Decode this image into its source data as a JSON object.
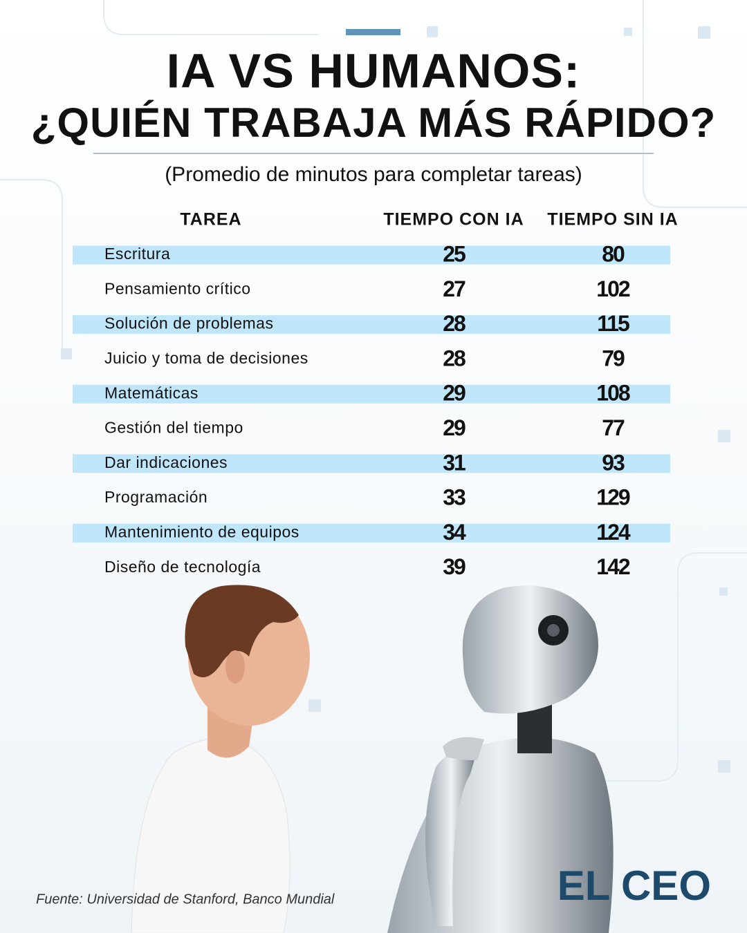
{
  "header": {
    "title_line1": "IA VS HUMANOS:",
    "title_line2": "¿QUIÉN TRABAJA MÁS RÁPIDO?",
    "subtitle": "(Promedio de minutos para completar tareas)"
  },
  "table": {
    "columns": [
      "TAREA",
      "TIEMPO CON IA",
      "TIEMPO SIN IA"
    ],
    "rows": [
      [
        "Escritura",
        25,
        80
      ],
      [
        "Pensamiento crítico",
        27,
        102
      ],
      [
        "Solución de problemas",
        28,
        115
      ],
      [
        "Juicio y toma de decisiones",
        28,
        79
      ],
      [
        "Matemáticas",
        29,
        108
      ],
      [
        "Gestión del tiempo",
        29,
        77
      ],
      [
        "Dar indicaciones",
        31,
        93
      ],
      [
        "Programación",
        33,
        129
      ],
      [
        "Mantenimiento de equipos",
        34,
        124
      ],
      [
        "Diseño de tecnología",
        39,
        142
      ]
    ]
  },
  "footer": {
    "source": "Fuente: Universidad de Stanford, Banco Mundial",
    "logo": "EL CEO"
  }
}
